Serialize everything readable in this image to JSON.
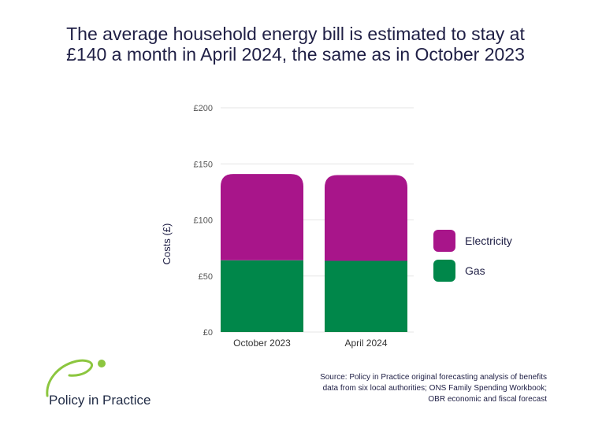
{
  "title": "The average household energy bill is estimated to stay at £140 a month in April 2024, the same as in October 2023",
  "source": "Source: Policy in Practice original forecasting analysis of benefits data from six local authorities; ONS Family Spending Workbook; OBR economic and fiscal forecast",
  "logo": {
    "text": "Policy in Practice"
  },
  "colors": {
    "electricity": "#a8158a",
    "gas": "#00874a",
    "grid": "#e6e6e6",
    "text": "#1f1f45",
    "logo_green": "#8cc63f"
  },
  "chart_data": {
    "type": "bar",
    "stacked": true,
    "categories": [
      "October 2023",
      "April 2024"
    ],
    "series": [
      {
        "name": "Gas",
        "values": [
          64,
          63.5
        ]
      },
      {
        "name": "Electricity",
        "values": [
          77,
          76.5
        ]
      }
    ],
    "ylabel": "Costs (£)",
    "ylim": [
      0,
      200
    ],
    "yticks": [
      0,
      50,
      100,
      150,
      200
    ],
    "ytick_labels": [
      "£0",
      "£50",
      "£100",
      "£150",
      "£200"
    ],
    "grid": true,
    "legend_position": "right"
  }
}
